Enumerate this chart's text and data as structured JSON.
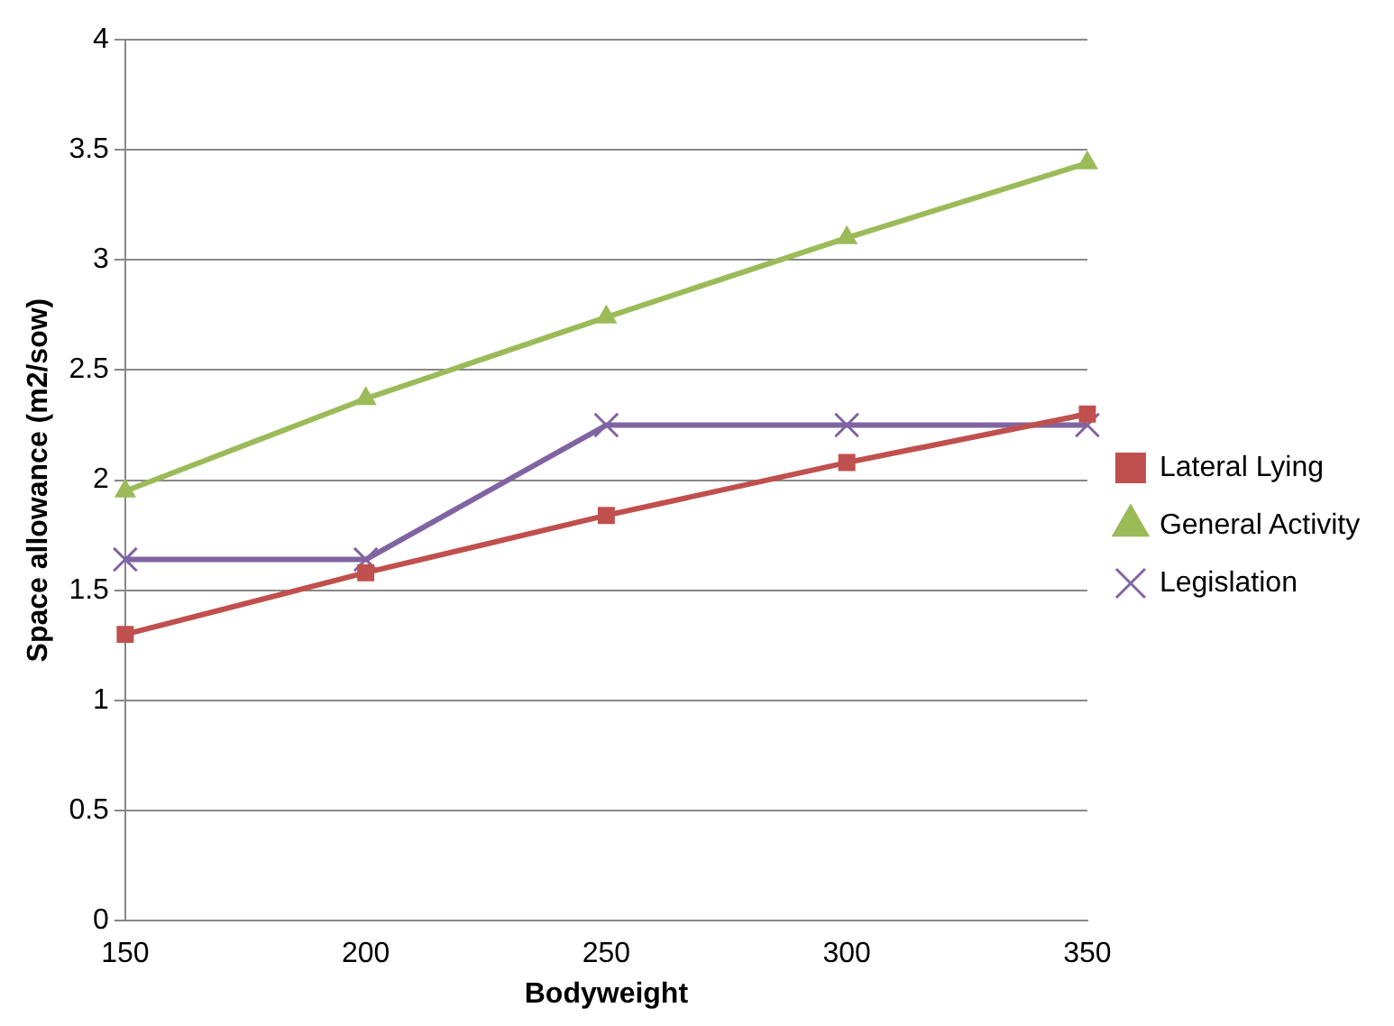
{
  "chart_data": {
    "type": "line",
    "xlabel": "Bodyweight",
    "ylabel": "Space allowance (m2/sow)",
    "categories": [
      "150",
      "200",
      "250",
      "300",
      "350"
    ],
    "series": [
      {
        "name": "Lateral Lying",
        "color": "#c0504d",
        "marker": "square",
        "values": [
          1.3,
          1.58,
          1.84,
          2.08,
          2.3
        ]
      },
      {
        "name": "General Activity",
        "color": "#9bbb59",
        "marker": "triangle",
        "values": [
          1.95,
          2.37,
          2.74,
          3.1,
          3.44
        ]
      },
      {
        "name": "Legislation",
        "color": "#8064a2",
        "marker": "cross",
        "values": [
          1.64,
          1.64,
          2.25,
          2.25,
          2.25
        ]
      }
    ],
    "ylim": [
      0,
      4
    ],
    "yticks": [
      0,
      0.5,
      1,
      1.5,
      2,
      2.5,
      3,
      3.5,
      4
    ],
    "grid": "y",
    "legend": "right"
  }
}
